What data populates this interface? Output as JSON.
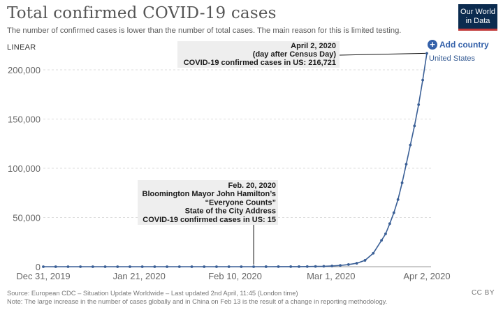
{
  "header": {
    "title": "Total confirmed COVID-19 cases",
    "subtitle": "The number of confirmed cases is lower than the number of total cases. The main reason for this is limited testing.",
    "logo_line1": "Our World",
    "logo_line2": "in Data"
  },
  "controls": {
    "scale_label": "LINEAR",
    "add_country_label": "Add country"
  },
  "chart_data": {
    "type": "line",
    "title": "Total confirmed COVID-19 cases",
    "xlabel": "",
    "ylabel": "",
    "x_tick_labels": [
      "Dec 31, 2019",
      "Jan 21, 2020",
      "Feb 10, 2020",
      "Mar 1, 2020",
      "Apr 2, 2020"
    ],
    "y_tick_labels": [
      "0",
      "50,000",
      "100,000",
      "150,000",
      "200,000"
    ],
    "y_ticks": [
      0,
      50000,
      100000,
      150000,
      200000
    ],
    "ylim": [
      0,
      200000
    ],
    "xlim": [
      "2019-12-31",
      "2020-04-02"
    ],
    "grid": "horizontal",
    "color": "#3a5f96",
    "series": [
      {
        "name": "United States",
        "points": [
          [
            "2019-12-31",
            0
          ],
          [
            "2020-01-03",
            0
          ],
          [
            "2020-01-06",
            0
          ],
          [
            "2020-01-09",
            0
          ],
          [
            "2020-01-12",
            0
          ],
          [
            "2020-01-15",
            0
          ],
          [
            "2020-01-18",
            0
          ],
          [
            "2020-01-21",
            1
          ],
          [
            "2020-01-24",
            2
          ],
          [
            "2020-01-27",
            5
          ],
          [
            "2020-01-30",
            6
          ],
          [
            "2020-02-02",
            8
          ],
          [
            "2020-02-05",
            11
          ],
          [
            "2020-02-08",
            12
          ],
          [
            "2020-02-11",
            13
          ],
          [
            "2020-02-14",
            14
          ],
          [
            "2020-02-17",
            15
          ],
          [
            "2020-02-20",
            15
          ],
          [
            "2020-02-23",
            35
          ],
          [
            "2020-02-26",
            57
          ],
          [
            "2020-02-29",
            68
          ],
          [
            "2020-03-02",
            91
          ],
          [
            "2020-03-04",
            149
          ],
          [
            "2020-03-06",
            261
          ],
          [
            "2020-03-08",
            417
          ],
          [
            "2020-03-10",
            755
          ],
          [
            "2020-03-12",
            1301
          ],
          [
            "2020-03-14",
            2174
          ],
          [
            "2020-03-16",
            3499
          ],
          [
            "2020-03-18",
            6421
          ],
          [
            "2020-03-20",
            13677
          ],
          [
            "2020-03-22",
            26747
          ],
          [
            "2020-03-23",
            33404
          ],
          [
            "2020-03-24",
            43734
          ],
          [
            "2020-03-25",
            54823
          ],
          [
            "2020-03-26",
            68211
          ],
          [
            "2020-03-27",
            85228
          ],
          [
            "2020-03-28",
            104126
          ],
          [
            "2020-03-29",
            123628
          ],
          [
            "2020-03-30",
            143025
          ],
          [
            "2020-03-31",
            164620
          ],
          [
            "2020-04-01",
            189618
          ],
          [
            "2020-04-02",
            216721
          ]
        ]
      }
    ],
    "annotations": [
      {
        "date": "2020-02-20",
        "value": 15,
        "lines": [
          "Feb. 20, 2020",
          "Bloomington Mayor John Hamilton’s",
          "“Everyone Counts”",
          "State of the City Address",
          "COVID-19 confirmed cases in US: 15"
        ]
      },
      {
        "date": "2020-04-02",
        "value": 216721,
        "lines": [
          "April 2, 2020",
          "(day after Census Day)",
          "COVID-19 confirmed cases in US: 216,721"
        ]
      }
    ]
  },
  "footer": {
    "source": "Source: European CDC – Situation Update Worldwide – Last updated 2nd April, 11:45 (London time)",
    "note": "Note: The large increase in the number of cases globally and in China on Feb 13 is the result of a change in reporting methodology.",
    "license": "CC BY"
  }
}
